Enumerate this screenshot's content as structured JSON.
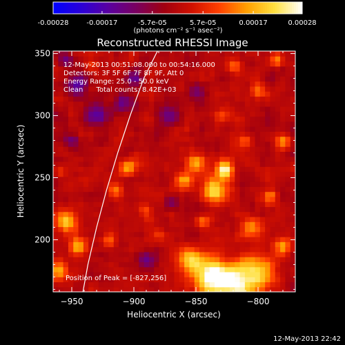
{
  "chart_data": {
    "type": "heatmap",
    "title": "Reconstructed RHESSI Image",
    "xlabel": "Heliocentric X (arcsec)",
    "ylabel": "Heliocentric Y (arcsec)",
    "xlim": [
      -965,
      -770
    ],
    "ylim": [
      158,
      352
    ],
    "xticks": [
      -950,
      -900,
      -850,
      -800
    ],
    "yticks": [
      200,
      250,
      300,
      350
    ],
    "colorbar": {
      "range": [
        -0.00028,
        0.00028
      ],
      "tick_values": [
        -0.00028,
        -0.00017,
        -5.7e-05,
        5.7e-05,
        0.00017,
        0.00028
      ],
      "tick_labels": [
        "-0.00028",
        "-0.00017",
        "-5.7e-05",
        "5.7e-05",
        "0.00017",
        "0.00028"
      ],
      "unit_label": "(photons cm⁻² s⁻¹ asec⁻²)",
      "colors": [
        "#0000ff",
        "#2a00d8",
        "#5a00a0",
        "#7a0060",
        "#a00010",
        "#d01000",
        "#ff4000",
        "#ffa000",
        "#ffe040",
        "#ffffff"
      ]
    },
    "annotations": [
      "12-May-2013 00:51:08.000 to 00:54:16.000",
      "Detectors: 3F 5F 6F 7F 8F 9F, Att 0",
      "Energy Range: 25.0 - 50.0 keV",
      "Clean      Total counts: 8.42E+03"
    ],
    "peak_label": "Position of Peak = [-827,256]",
    "peak": [
      -827,
      256
    ],
    "limb_curve": {
      "x": [
        -941,
        -937,
        -930,
        -922,
        -913,
        -903,
        -892,
        -881
      ],
      "y": [
        158,
        180,
        210,
        240,
        270,
        300,
        330,
        352
      ]
    },
    "blobs": [
      {
        "x": -827,
        "y": 256,
        "v": 0.00028,
        "s": 5
      },
      {
        "x": -835,
        "y": 240,
        "v": 0.00022,
        "s": 7
      },
      {
        "x": -820,
        "y": 165,
        "v": 0.00026,
        "s": 12
      },
      {
        "x": -840,
        "y": 172,
        "v": 0.00024,
        "s": 10
      },
      {
        "x": -800,
        "y": 175,
        "v": 0.0002,
        "s": 9
      },
      {
        "x": -855,
        "y": 185,
        "v": 0.00018,
        "s": 7
      },
      {
        "x": -805,
        "y": 210,
        "v": 0.00015,
        "s": 6
      },
      {
        "x": -780,
        "y": 195,
        "v": 0.00016,
        "s": 5
      },
      {
        "x": -850,
        "y": 262,
        "v": 0.00019,
        "s": 5
      },
      {
        "x": -860,
        "y": 248,
        "v": 0.00017,
        "s": 5
      },
      {
        "x": -955,
        "y": 215,
        "v": 0.0002,
        "s": 6
      },
      {
        "x": -945,
        "y": 195,
        "v": 0.00018,
        "s": 5
      },
      {
        "x": -960,
        "y": 175,
        "v": 0.00016,
        "s": 5
      },
      {
        "x": -905,
        "y": 258,
        "v": 0.00017,
        "s": 5
      },
      {
        "x": -915,
        "y": 240,
        "v": 0.00012,
        "s": 4
      },
      {
        "x": -920,
        "y": 200,
        "v": 0.0001,
        "s": 4
      },
      {
        "x": -960,
        "y": 255,
        "v": 0.0001,
        "s": 4
      },
      {
        "x": -800,
        "y": 320,
        "v": 0.00014,
        "s": 5
      },
      {
        "x": -785,
        "y": 345,
        "v": 0.00016,
        "s": 4
      },
      {
        "x": -780,
        "y": 280,
        "v": 0.00015,
        "s": 4
      },
      {
        "x": -790,
        "y": 235,
        "v": 0.00014,
        "s": 4
      },
      {
        "x": -810,
        "y": 280,
        "v": 0.00012,
        "s": 4
      },
      {
        "x": -830,
        "y": 300,
        "v": 0.0001,
        "s": 4
      },
      {
        "x": -820,
        "y": 340,
        "v": 0.00011,
        "s": 4
      },
      {
        "x": -890,
        "y": 225,
        "v": 9e-05,
        "s": 4
      },
      {
        "x": -845,
        "y": 215,
        "v": 0.00012,
        "s": 4
      },
      {
        "x": -880,
        "y": 205,
        "v": 8e-05,
        "s": 4
      },
      {
        "x": -935,
        "y": 340,
        "v": 8e-05,
        "s": 4
      },
      {
        "x": -930,
        "y": 300,
        "v": -0.00018,
        "s": 6
      },
      {
        "x": -945,
        "y": 325,
        "v": -0.00016,
        "s": 6
      },
      {
        "x": -900,
        "y": 330,
        "v": -0.00014,
        "s": 5
      },
      {
        "x": -870,
        "y": 300,
        "v": -0.00013,
        "s": 6
      },
      {
        "x": -910,
        "y": 310,
        "v": -0.00012,
        "s": 5
      },
      {
        "x": -850,
        "y": 320,
        "v": -0.00012,
        "s": 5
      },
      {
        "x": -890,
        "y": 185,
        "v": -0.00012,
        "s": 5
      },
      {
        "x": -870,
        "y": 230,
        "v": -0.0001,
        "s": 4
      },
      {
        "x": -950,
        "y": 280,
        "v": -0.0001,
        "s": 4
      },
      {
        "x": -955,
        "y": 345,
        "v": -0.00012,
        "s": 4
      }
    ]
  },
  "footer": {
    "timestamp": "12-May-2013 22:42"
  }
}
